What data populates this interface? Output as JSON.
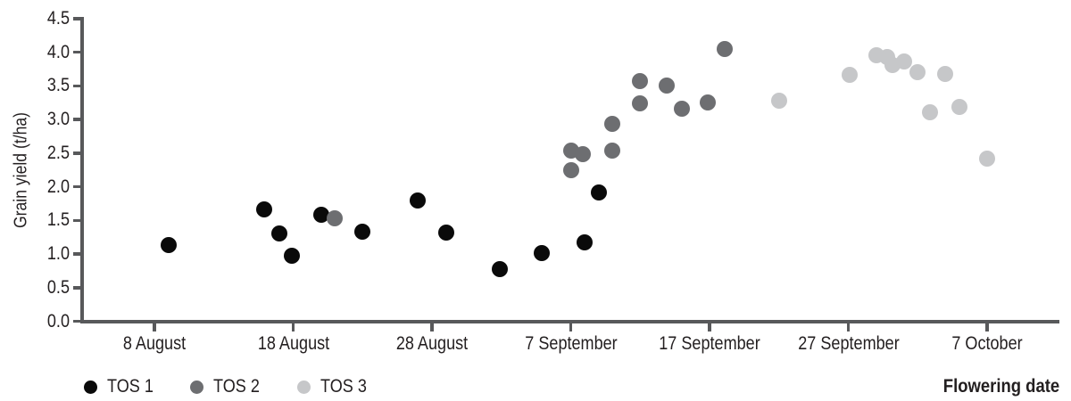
{
  "figure": {
    "background": "#ffffff",
    "axis_color": "#58595b",
    "text_color": "#231f20"
  },
  "chart_data": {
    "type": "scatter",
    "title": "",
    "xlabel": "Flowering date",
    "ylabel": "Grain yield (t/ha)",
    "x_unit": "days since 8 August",
    "x_tick_days": [
      0,
      10,
      20,
      30,
      40,
      50,
      60
    ],
    "x_tick_labels": [
      "8 August",
      "18 August",
      "28 August",
      "7 September",
      "17 September",
      "27 September",
      "7 October"
    ],
    "y_ticks": [
      0.0,
      0.5,
      1.0,
      1.5,
      2.0,
      2.5,
      3.0,
      3.5,
      4.0,
      4.5
    ],
    "ylim": [
      0,
      4.5
    ],
    "grid": false,
    "legend_position": "bottom-left",
    "series": [
      {
        "name": "TOS 1",
        "color": "#0a0a0a",
        "points": [
          {
            "date": "9 August",
            "day": 1.0,
            "value": 1.13
          },
          {
            "date": "16 August",
            "day": 7.9,
            "value": 1.66
          },
          {
            "date": "17 August",
            "day": 9.0,
            "value": 1.3
          },
          {
            "date": "18 August",
            "day": 9.9,
            "value": 0.97
          },
          {
            "date": "20 August",
            "day": 12.0,
            "value": 1.58
          },
          {
            "date": "23 August",
            "day": 15.0,
            "value": 1.33
          },
          {
            "date": "27 August",
            "day": 19.0,
            "value": 1.8
          },
          {
            "date": "29 August",
            "day": 21.0,
            "value": 1.32
          },
          {
            "date": "2 September",
            "day": 24.9,
            "value": 0.78
          },
          {
            "date": "5 September",
            "day": 27.9,
            "value": 1.01
          },
          {
            "date": "8 September",
            "day": 31.0,
            "value": 1.17
          },
          {
            "date": "9 September",
            "day": 32.0,
            "value": 1.92
          }
        ]
      },
      {
        "name": "TOS 2",
        "color": "#6d6e71",
        "points": [
          {
            "date": "21 August",
            "day": 13.0,
            "value": 1.53
          },
          {
            "date": "7 September",
            "day": 30.0,
            "value": 2.53
          },
          {
            "date": "7 September",
            "day": 30.0,
            "value": 2.24
          },
          {
            "date": "8 September",
            "day": 30.9,
            "value": 2.48
          },
          {
            "date": "10 September",
            "day": 33.0,
            "value": 2.54
          },
          {
            "date": "10 September",
            "day": 33.0,
            "value": 2.94
          },
          {
            "date": "12 September",
            "day": 35.0,
            "value": 3.57
          },
          {
            "date": "12 September",
            "day": 35.0,
            "value": 3.24
          },
          {
            "date": "14 September",
            "day": 36.9,
            "value": 3.5
          },
          {
            "date": "15 September",
            "day": 38.0,
            "value": 3.16
          },
          {
            "date": "17 September",
            "day": 39.9,
            "value": 3.25
          },
          {
            "date": "18 September",
            "day": 41.1,
            "value": 4.05
          }
        ]
      },
      {
        "name": "TOS 3",
        "color": "#c6c7c9",
        "points": [
          {
            "date": "22 September",
            "day": 45.0,
            "value": 3.28
          },
          {
            "date": "27 September",
            "day": 50.1,
            "value": 3.66
          },
          {
            "date": "29 September",
            "day": 52.0,
            "value": 3.95
          },
          {
            "date": "30 September",
            "day": 52.8,
            "value": 3.93
          },
          {
            "date": "30 September",
            "day": 53.2,
            "value": 3.81
          },
          {
            "date": "1 October",
            "day": 54.0,
            "value": 3.86
          },
          {
            "date": "2 October",
            "day": 55.0,
            "value": 3.7
          },
          {
            "date": "3 October",
            "day": 55.9,
            "value": 3.1
          },
          {
            "date": "4 October",
            "day": 57.0,
            "value": 3.68
          },
          {
            "date": "5 October",
            "day": 58.0,
            "value": 3.18
          },
          {
            "date": "7 October",
            "day": 60.0,
            "value": 2.42
          }
        ]
      }
    ]
  }
}
